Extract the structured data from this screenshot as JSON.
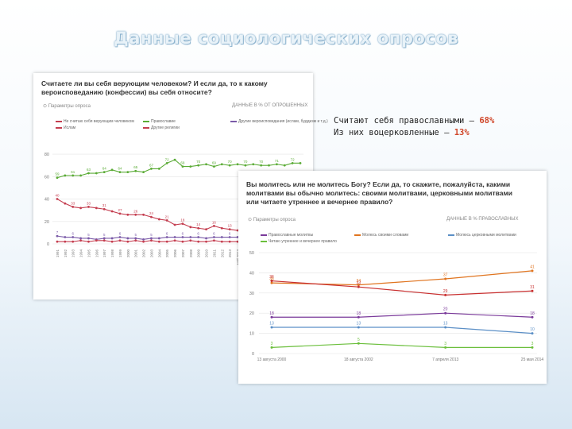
{
  "slide": {
    "title": "Данные социологических опросов",
    "stat1_text": "Считают себя православными – ",
    "stat1_value": "68%",
    "stat2_text": "Из них воцерковленные – ",
    "stat2_value": "13%"
  },
  "colors": {
    "orthodox": "#5aab35",
    "believer": "#c43d4f",
    "other": "#7a5aa8",
    "purple": "#7a3a9a",
    "orange": "#e0741f",
    "red": "#c83030",
    "blue": "#5b8fc6",
    "green": "#6bbf3c"
  },
  "chart1": {
    "question": "Считаете ли вы себя верующим человеком? И если да, то к какому вероисповеданию (конфессии) вы себя относите?",
    "params_label": "Параметры опроса",
    "data_label": "ДАННЫЕ В % ОТ ОПРОШЕННЫХ",
    "legend": [
      {
        "label": "Не считаю себя верующим человеком",
        "color": "#c43d4f"
      },
      {
        "label": "Православие",
        "color": "#5aab35"
      },
      {
        "label": "Другие вероисповедания (ислам, буддизм и т.д.)",
        "color": "#7a5aa8"
      },
      {
        "label": "Ислам",
        "color": "#c43d4f"
      },
      {
        "label": "Другие религии",
        "color": "#c43d4f"
      }
    ]
  },
  "chart2": {
    "question": "Вы молитесь или не молитесь Богу? Если да, то скажите, пожалуйста, какими молитвами вы обычно молитесь: своими молитвами, церковными молитвами или читаете утреннее и вечернее правило?",
    "params_label": "Параметры опроса",
    "data_label": "ДАННЫЕ В % ПРАВОСЛАВНЫХ",
    "legend": [
      {
        "label": "Православные молитвы",
        "color": "#7a3a9a"
      },
      {
        "label": "Молюсь своими словами",
        "color": "#e0741f"
      },
      {
        "label": "Молюсь церковными молитвами",
        "color": "#5b8fc6"
      },
      {
        "label": "Читаю утреннее и вечернее правило",
        "color": "#6bbf3c"
      }
    ]
  },
  "chart_data": [
    {
      "type": "line",
      "title": "Считаете ли вы себя верующим человеком? И если да, то к какому вероисповеданию (конфессии) вы себя относите?",
      "ylim": [
        0,
        85
      ],
      "yticks": [
        0,
        20,
        40,
        60,
        80
      ],
      "x": [
        "1991",
        "1992",
        "1993",
        "1994",
        "1995",
        "1996",
        "1997",
        "1998",
        "1999",
        "2000",
        "2001",
        "2002",
        "2003",
        "2004",
        "2005",
        "2006",
        "2007",
        "2008",
        "2009",
        "2010",
        "2011",
        "2012",
        "2013",
        "май 2013",
        "август 2013",
        "октябрь 2013",
        "январь 2014",
        "2014",
        "2015",
        "2016",
        "2017",
        "2018"
      ],
      "series": [
        {
          "name": "Православие",
          "color": "#5aab35",
          "values": [
            59,
            61,
            61,
            61,
            63,
            63,
            64,
            66,
            64,
            64,
            65,
            64,
            67,
            67,
            72,
            75,
            69,
            69,
            70,
            71,
            69,
            71,
            70,
            71,
            70,
            71,
            70,
            70,
            71,
            70,
            72,
            72
          ]
        },
        {
          "name": "Не считаю себя верующим человеком",
          "color": "#c43d4f",
          "values": [
            40,
            36,
            33,
            32,
            33,
            32,
            31,
            29,
            27,
            26,
            26,
            26,
            24,
            22,
            21,
            17,
            18,
            15,
            14,
            13,
            16,
            14,
            13,
            12,
            13,
            12,
            13,
            13,
            12,
            12,
            11,
            11
          ]
        },
        {
          "name": "Другие вероисповедания (ислам, буддизм и т.д.)",
          "color": "#7a5aa8",
          "values": [
            7,
            6,
            6,
            5,
            5,
            4,
            5,
            5,
            6,
            5,
            5,
            4,
            5,
            5,
            6,
            6,
            6,
            6,
            6,
            5,
            6,
            6,
            6,
            6,
            7,
            7,
            6,
            6,
            6,
            6,
            6,
            6
          ]
        },
        {
          "name": "Другие религии",
          "color": "#c43d4f",
          "values": [
            2,
            2,
            2,
            3,
            2,
            3,
            3,
            2,
            3,
            2,
            3,
            2,
            3,
            2,
            2,
            3,
            2,
            3,
            2,
            2,
            3,
            2,
            2,
            2,
            2,
            2,
            2,
            2,
            2,
            2,
            2,
            2
          ]
        }
      ],
      "data_labels": {
        "Православие": [
          59,
          61,
          61,
          61,
          63,
          63,
          64,
          66,
          64,
          64,
          65,
          64,
          67,
          67,
          72,
          75,
          69,
          69,
          70,
          71,
          69,
          71,
          70,
          71,
          70,
          71,
          70,
          70,
          71,
          70,
          72,
          72
        ],
        "Не считаю себя верующим человеком": [
          40,
          36,
          33,
          32,
          33,
          32,
          31,
          29,
          27,
          26,
          26,
          26,
          24,
          22,
          21,
          17,
          18,
          15,
          14,
          13,
          16,
          14,
          13,
          12,
          13,
          12,
          13,
          13,
          12,
          12,
          11,
          11
        ],
        "Другие вероисповедания (ислам, буддизм и т.д.)": [
          7,
          6,
          6,
          5,
          5,
          4,
          5,
          5,
          6,
          5,
          5,
          4,
          5,
          5,
          6,
          6,
          6,
          6,
          6,
          5,
          6,
          6,
          6,
          6,
          7,
          7,
          6,
          6,
          6,
          6,
          6,
          6
        ]
      }
    },
    {
      "type": "line",
      "title": "Вы молитесь или не молитесь Богу? Если да, то скажите, пожалуйста, какими молитвами вы обычно молитесь: своими молитвами, церковными молитвами или читаете утреннее и вечернее правило?",
      "ylim": [
        0,
        50
      ],
      "yticks": [
        0,
        10,
        20,
        30,
        40,
        50
      ],
      "x": [
        "13 августа 2000",
        "18 августа 2002",
        "7 апреля 2013",
        "25 мая 2014"
      ],
      "series": [
        {
          "name": "Молюсь своими словами",
          "color": "#e0741f",
          "values": [
            35,
            34,
            37,
            41
          ]
        },
        {
          "name": "Православные молитвы",
          "color": "#c83030",
          "values": [
            36,
            33,
            29,
            31
          ]
        },
        {
          "name": "Молюсь церковными молитвами",
          "color": "#7a3a9a",
          "values": [
            18,
            18,
            20,
            18
          ]
        },
        {
          "name": "Синяя линия",
          "color": "#5b8fc6",
          "values": [
            13,
            13,
            13,
            10
          ]
        },
        {
          "name": "Читаю утреннее и вечернее правило",
          "color": "#6bbf3c",
          "values": [
            3,
            5,
            3,
            3
          ]
        }
      ]
    }
  ]
}
